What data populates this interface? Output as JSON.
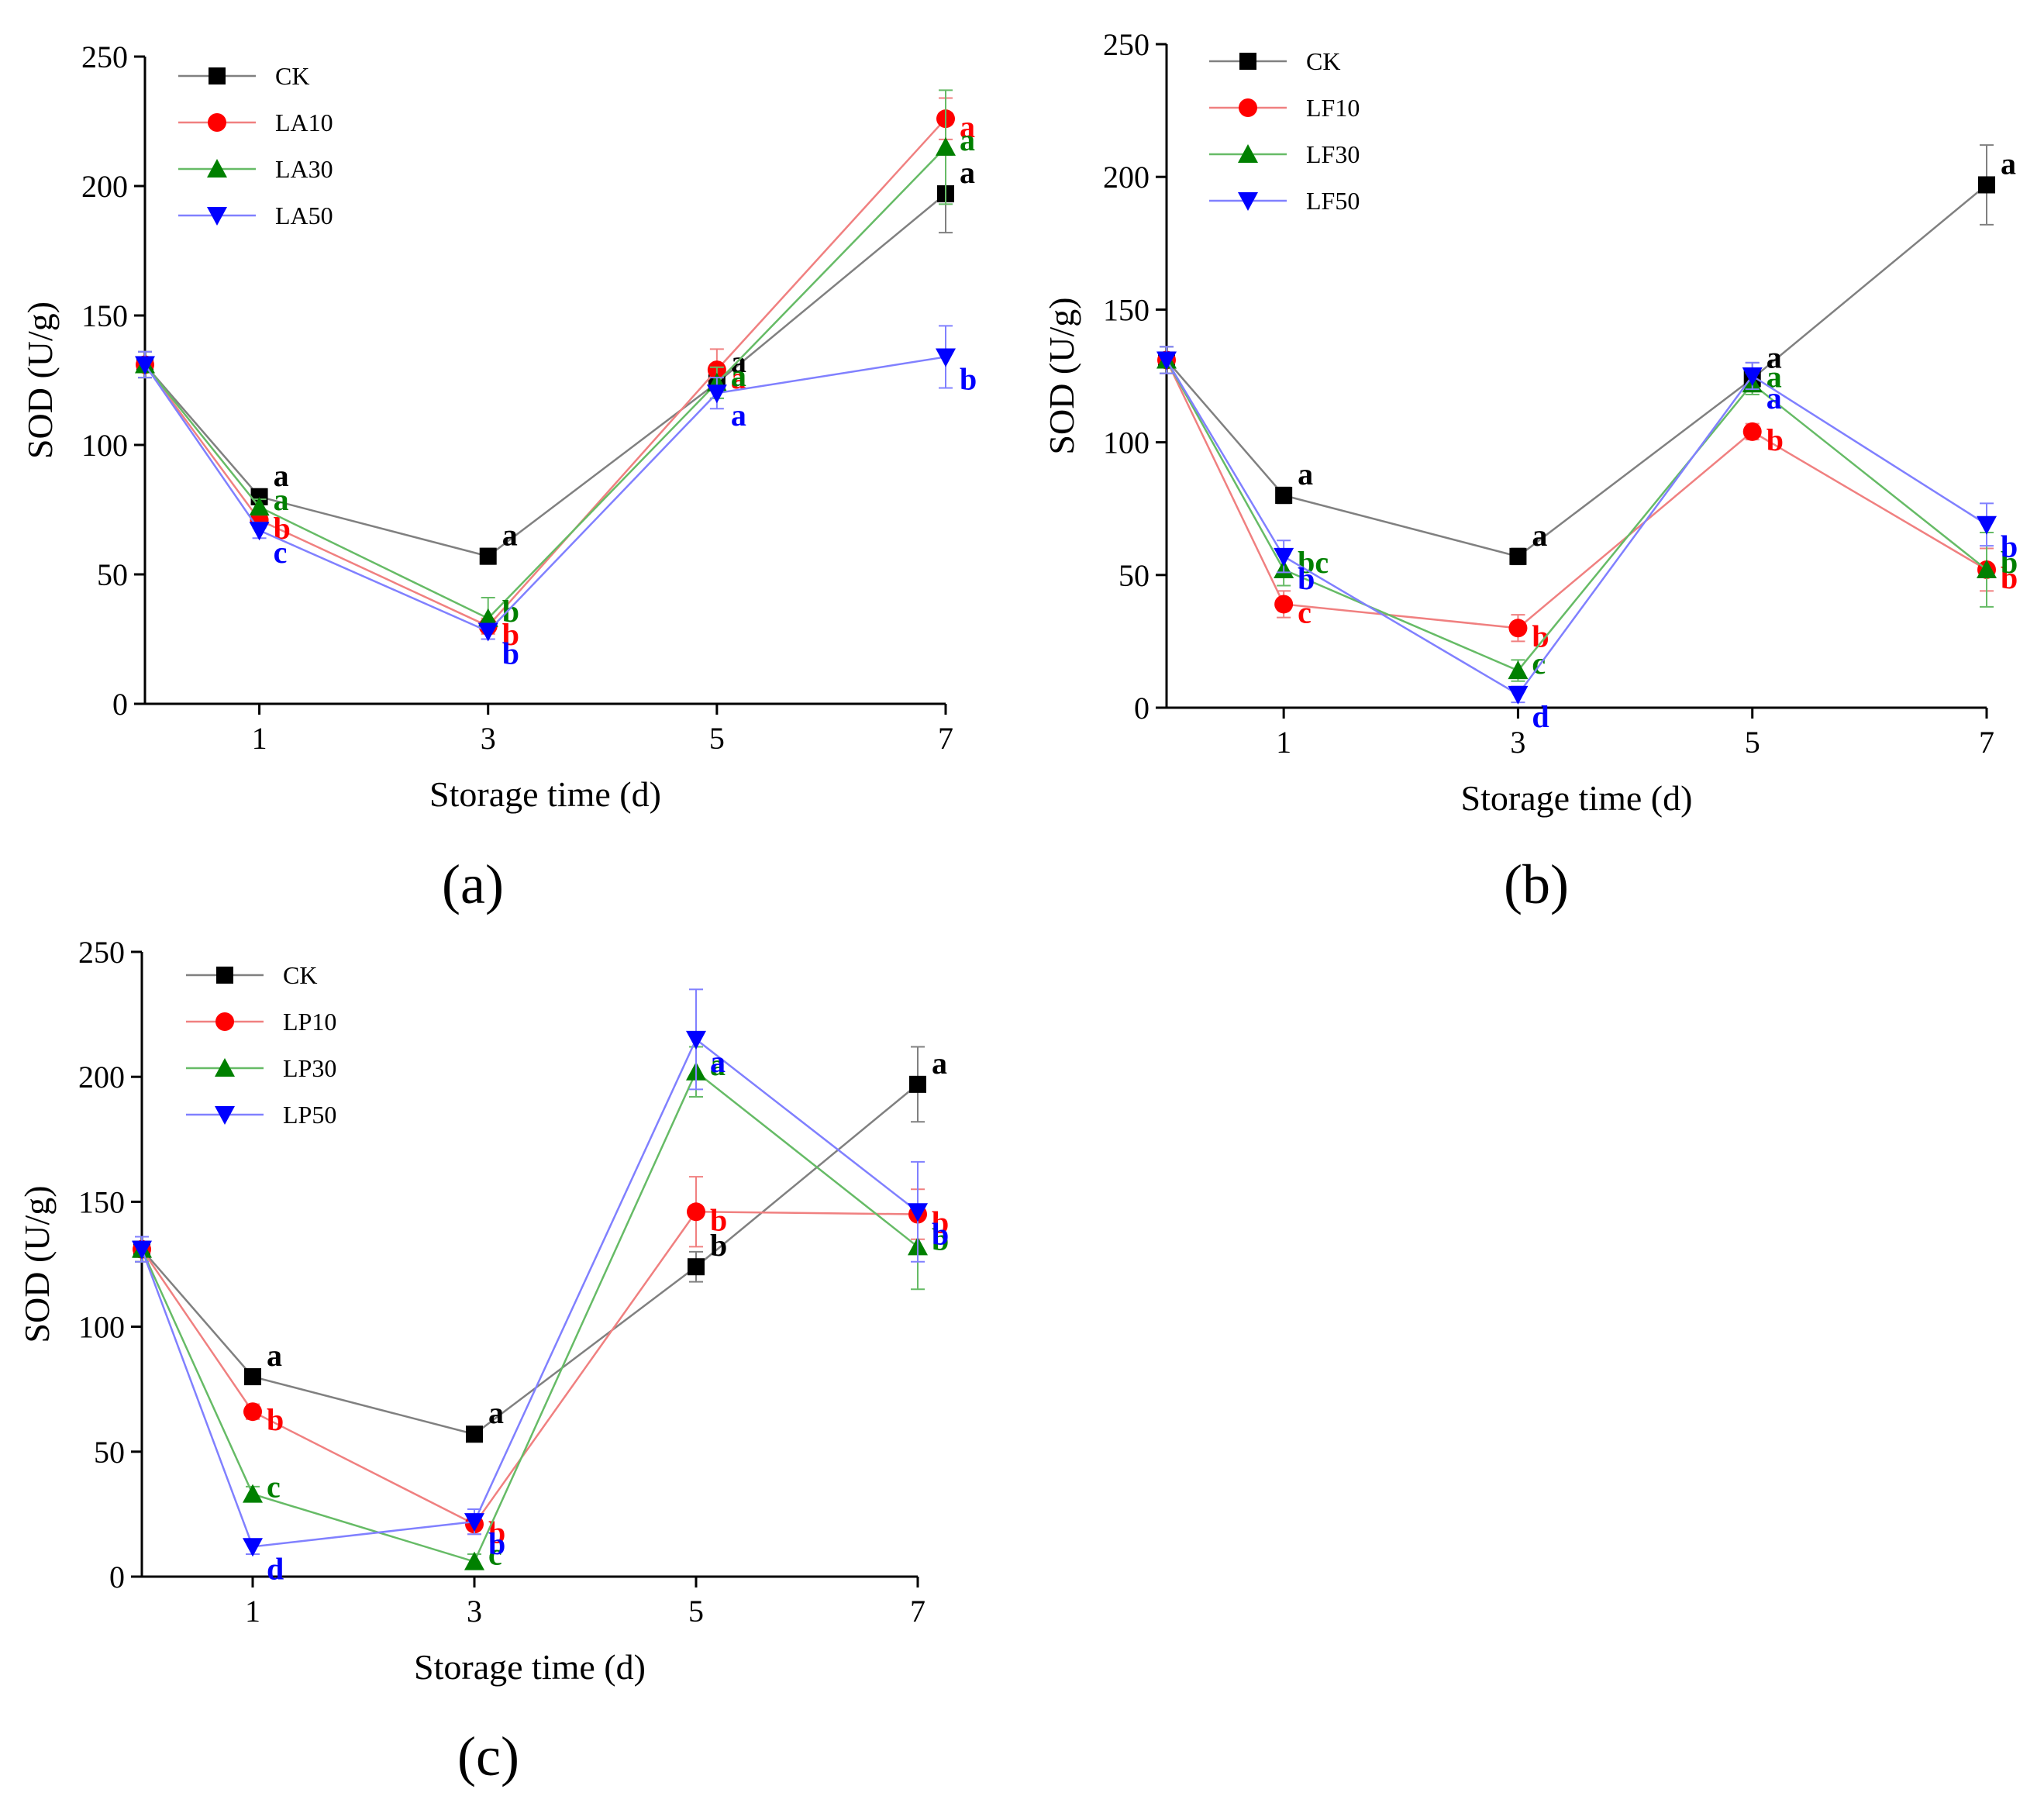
{
  "chart_data": [
    {
      "type": "line",
      "panel_label": "(a)",
      "xlabel": "Storage time (d)",
      "ylabel": "SOD (U/g)",
      "x": [
        0,
        1,
        3,
        5,
        7
      ],
      "x_ticks": [
        1,
        3,
        5,
        7
      ],
      "xlim": [
        0,
        7
      ],
      "y_ticks": [
        0,
        50,
        100,
        150,
        200,
        250
      ],
      "ylim": [
        0,
        250
      ],
      "legend_position": "top-left",
      "series": [
        {
          "name": "CK",
          "color": "#000000",
          "marker": "square",
          "line_color": "#808080",
          "values": [
            131,
            80,
            57,
            124,
            197
          ],
          "errors": [
            5,
            3,
            3,
            6,
            15
          ],
          "letters": [
            "",
            "a",
            "a",
            "a",
            "a"
          ]
        },
        {
          "name": "LA10",
          "color": "#ff0000",
          "marker": "circle",
          "line_color": "#f08080",
          "values": [
            131,
            71,
            30,
            129,
            226
          ],
          "errors": [
            5,
            3,
            3,
            8,
            8
          ],
          "letters": [
            "",
            "b",
            "b",
            "a",
            "a"
          ]
        },
        {
          "name": "LA30",
          "color": "#008000",
          "marker": "triangle-up",
          "line_color": "#66bb66",
          "values": [
            131,
            76,
            33,
            124,
            215
          ],
          "errors": [
            5,
            3,
            8,
            6,
            22
          ],
          "letters": [
            "",
            "a",
            "b",
            "a",
            "a"
          ]
        },
        {
          "name": "LA50",
          "color": "#0000ff",
          "marker": "triangle-down",
          "line_color": "#8080ff",
          "values": [
            131,
            67,
            28,
            120,
            134
          ],
          "errors": [
            5,
            3,
            3,
            6,
            12
          ],
          "letters": [
            "",
            "c",
            "b",
            "a",
            "b"
          ]
        }
      ]
    },
    {
      "type": "line",
      "panel_label": "(b)",
      "xlabel": "Storage time (d)",
      "ylabel": "SOD (U/g)",
      "x": [
        0,
        1,
        3,
        5,
        7
      ],
      "x_ticks": [
        1,
        3,
        5,
        7
      ],
      "xlim": [
        0,
        7
      ],
      "y_ticks": [
        0,
        50,
        100,
        150,
        200,
        250
      ],
      "ylim": [
        0,
        250
      ],
      "legend_position": "top-left",
      "series": [
        {
          "name": "CK",
          "color": "#000000",
          "marker": "square",
          "line_color": "#808080",
          "values": [
            131,
            80,
            57,
            124,
            197
          ],
          "errors": [
            5,
            3,
            3,
            6,
            15
          ],
          "letters": [
            "",
            "a",
            "a",
            "a",
            "a"
          ]
        },
        {
          "name": "LF10",
          "color": "#ff0000",
          "marker": "circle",
          "line_color": "#f08080",
          "values": [
            131,
            39,
            30,
            104,
            52
          ],
          "errors": [
            5,
            5,
            5,
            3,
            8
          ],
          "letters": [
            "",
            "c",
            "b",
            "b",
            "b"
          ]
        },
        {
          "name": "LF30",
          "color": "#008000",
          "marker": "triangle-up",
          "line_color": "#66bb66",
          "values": [
            131,
            52,
            14,
            122,
            52
          ],
          "errors": [
            5,
            6,
            4,
            4,
            14
          ],
          "letters": [
            "",
            "bc",
            "c",
            "a",
            "b"
          ]
        },
        {
          "name": "LF50",
          "color": "#0000ff",
          "marker": "triangle-down",
          "line_color": "#8080ff",
          "values": [
            131,
            57,
            5,
            125,
            69
          ],
          "errors": [
            5,
            6,
            3,
            5,
            8
          ],
          "letters": [
            "",
            "b",
            "d",
            "a",
            "b"
          ]
        }
      ]
    },
    {
      "type": "line",
      "panel_label": "(c)",
      "xlabel": "Storage time (d)",
      "ylabel": "SOD (U/g)",
      "x": [
        0,
        1,
        3,
        5,
        7
      ],
      "x_ticks": [
        1,
        3,
        5,
        7
      ],
      "xlim": [
        0,
        7
      ],
      "y_ticks": [
        0,
        50,
        100,
        150,
        200,
        250
      ],
      "ylim": [
        0,
        250
      ],
      "legend_position": "top-left",
      "series": [
        {
          "name": "CK",
          "color": "#000000",
          "marker": "square",
          "line_color": "#808080",
          "values": [
            131,
            80,
            57,
            124,
            197
          ],
          "errors": [
            5,
            3,
            3,
            6,
            15
          ],
          "letters": [
            "",
            "a",
            "a",
            "b",
            "a"
          ]
        },
        {
          "name": "LP10",
          "color": "#ff0000",
          "marker": "circle",
          "line_color": "#f08080",
          "values": [
            131,
            66,
            21,
            146,
            145
          ],
          "errors": [
            5,
            3,
            4,
            14,
            10
          ],
          "letters": [
            "",
            "b",
            "b",
            "b",
            "b"
          ]
        },
        {
          "name": "LP30",
          "color": "#008000",
          "marker": "triangle-up",
          "line_color": "#66bb66",
          "values": [
            131,
            33,
            6,
            202,
            132
          ],
          "errors": [
            5,
            3,
            3,
            10,
            17
          ],
          "letters": [
            "",
            "c",
            "c",
            "a",
            "b"
          ]
        },
        {
          "name": "LP50",
          "color": "#0000ff",
          "marker": "triangle-down",
          "line_color": "#8080ff",
          "values": [
            131,
            12,
            22,
            215,
            146
          ],
          "errors": [
            5,
            3,
            5,
            20,
            20
          ],
          "letters": [
            "",
            "d",
            "b",
            "a",
            "b"
          ]
        }
      ]
    }
  ]
}
